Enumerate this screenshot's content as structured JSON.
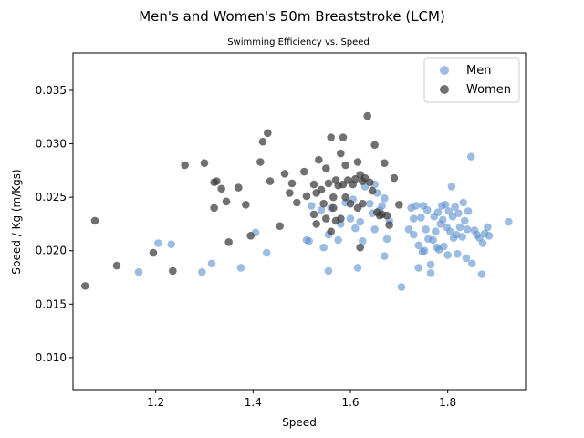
{
  "chart_data": {
    "type": "scatter",
    "title": "Men's and Women's 50m Breaststroke (LCM)",
    "subtitle": "Swimming Efficiency vs. Speed",
    "xlabel": "Speed",
    "ylabel": "Speed / Kg (m/Kgs)",
    "xlim": [
      1.03,
      1.96
    ],
    "ylim": [
      0.007,
      0.0385
    ],
    "xticks": [
      "1.2",
      "1.4",
      "1.6",
      "1.8"
    ],
    "yticks": [
      "0.010",
      "0.015",
      "0.020",
      "0.025",
      "0.030",
      "0.035"
    ],
    "grid": false,
    "legend_position": "top-right",
    "series": [
      {
        "name": "Men",
        "color": "#5b8fce",
        "points": [
          [
            1.165,
            0.018
          ],
          [
            1.205,
            0.0207
          ],
          [
            1.232,
            0.0206
          ],
          [
            1.295,
            0.018
          ],
          [
            1.315,
            0.0188
          ],
          [
            1.375,
            0.0184
          ],
          [
            1.405,
            0.0217
          ],
          [
            1.428,
            0.0198
          ],
          [
            1.51,
            0.021
          ],
          [
            1.515,
            0.0209
          ],
          [
            1.52,
            0.0242
          ],
          [
            1.54,
            0.0238
          ],
          [
            1.545,
            0.0203
          ],
          [
            1.555,
            0.0181
          ],
          [
            1.555,
            0.0215
          ],
          [
            1.56,
            0.024
          ],
          [
            1.575,
            0.021
          ],
          [
            1.58,
            0.0225
          ],
          [
            1.59,
            0.0245
          ],
          [
            1.6,
            0.023
          ],
          [
            1.605,
            0.0248
          ],
          [
            1.61,
            0.0221
          ],
          [
            1.615,
            0.0184
          ],
          [
            1.62,
            0.0227
          ],
          [
            1.625,
            0.0209
          ],
          [
            1.63,
            0.026
          ],
          [
            1.64,
            0.0244
          ],
          [
            1.645,
            0.0235
          ],
          [
            1.65,
            0.022
          ],
          [
            1.65,
            0.0262
          ],
          [
            1.655,
            0.0254
          ],
          [
            1.66,
            0.0238
          ],
          [
            1.665,
            0.0242
          ],
          [
            1.67,
            0.0249
          ],
          [
            1.67,
            0.0195
          ],
          [
            1.675,
            0.0211
          ],
          [
            1.68,
            0.0228
          ],
          [
            1.705,
            0.0166
          ],
          [
            1.72,
            0.022
          ],
          [
            1.725,
            0.024
          ],
          [
            1.73,
            0.023
          ],
          [
            1.73,
            0.0215
          ],
          [
            1.735,
            0.0242
          ],
          [
            1.74,
            0.0205
          ],
          [
            1.74,
            0.0184
          ],
          [
            1.745,
            0.0231
          ],
          [
            1.748,
            0.0199
          ],
          [
            1.75,
            0.0242
          ],
          [
            1.752,
            0.02
          ],
          [
            1.755,
            0.022
          ],
          [
            1.758,
            0.0238
          ],
          [
            1.76,
            0.0211
          ],
          [
            1.765,
            0.0187
          ],
          [
            1.765,
            0.0179
          ],
          [
            1.77,
            0.021
          ],
          [
            1.772,
            0.0232
          ],
          [
            1.775,
            0.0218
          ],
          [
            1.778,
            0.0203
          ],
          [
            1.78,
            0.0236
          ],
          [
            1.782,
            0.0201
          ],
          [
            1.785,
            0.0225
          ],
          [
            1.788,
            0.0242
          ],
          [
            1.79,
            0.0229
          ],
          [
            1.792,
            0.0204
          ],
          [
            1.795,
            0.0243
          ],
          [
            1.798,
            0.0222
          ],
          [
            1.8,
            0.0196
          ],
          [
            1.802,
            0.0237
          ],
          [
            1.805,
            0.0218
          ],
          [
            1.808,
            0.026
          ],
          [
            1.81,
            0.0232
          ],
          [
            1.812,
            0.0212
          ],
          [
            1.815,
            0.0241
          ],
          [
            1.818,
            0.0215
          ],
          [
            1.82,
            0.0197
          ],
          [
            1.822,
            0.0235
          ],
          [
            1.825,
            0.0222
          ],
          [
            1.83,
            0.0213
          ],
          [
            1.832,
            0.0245
          ],
          [
            1.835,
            0.0228
          ],
          [
            1.838,
            0.0193
          ],
          [
            1.84,
            0.022
          ],
          [
            1.842,
            0.0237
          ],
          [
            1.848,
            0.0288
          ],
          [
            1.85,
            0.0188
          ],
          [
            1.855,
            0.0219
          ],
          [
            1.86,
            0.0215
          ],
          [
            1.865,
            0.0212
          ],
          [
            1.87,
            0.0178
          ],
          [
            1.872,
            0.0207
          ],
          [
            1.876,
            0.0216
          ],
          [
            1.882,
            0.0222
          ],
          [
            1.885,
            0.0214
          ],
          [
            1.925,
            0.0227
          ]
        ]
      },
      {
        "name": "Women",
        "color": "#3a3a3a",
        "points": [
          [
            1.055,
            0.0167
          ],
          [
            1.075,
            0.0228
          ],
          [
            1.12,
            0.0186
          ],
          [
            1.195,
            0.0198
          ],
          [
            1.235,
            0.0181
          ],
          [
            1.26,
            0.028
          ],
          [
            1.3,
            0.0282
          ],
          [
            1.32,
            0.024
          ],
          [
            1.32,
            0.0264
          ],
          [
            1.325,
            0.0265
          ],
          [
            1.335,
            0.0258
          ],
          [
            1.345,
            0.0246
          ],
          [
            1.35,
            0.0208
          ],
          [
            1.37,
            0.0259
          ],
          [
            1.385,
            0.0243
          ],
          [
            1.395,
            0.0214
          ],
          [
            1.415,
            0.0283
          ],
          [
            1.42,
            0.0302
          ],
          [
            1.43,
            0.031
          ],
          [
            1.435,
            0.0265
          ],
          [
            1.455,
            0.0223
          ],
          [
            1.465,
            0.0272
          ],
          [
            1.475,
            0.0254
          ],
          [
            1.48,
            0.0263
          ],
          [
            1.49,
            0.0245
          ],
          [
            1.505,
            0.0274
          ],
          [
            1.51,
            0.0251
          ],
          [
            1.525,
            0.0262
          ],
          [
            1.525,
            0.0234
          ],
          [
            1.53,
            0.0254
          ],
          [
            1.53,
            0.0225
          ],
          [
            1.535,
            0.0285
          ],
          [
            1.54,
            0.0257
          ],
          [
            1.545,
            0.0244
          ],
          [
            1.55,
            0.023
          ],
          [
            1.55,
            0.0277
          ],
          [
            1.555,
            0.0263
          ],
          [
            1.56,
            0.0218
          ],
          [
            1.56,
            0.0306
          ],
          [
            1.565,
            0.025
          ],
          [
            1.565,
            0.024
          ],
          [
            1.57,
            0.0266
          ],
          [
            1.57,
            0.0228
          ],
          [
            1.575,
            0.0261
          ],
          [
            1.58,
            0.0291
          ],
          [
            1.58,
            0.023
          ],
          [
            1.585,
            0.0262
          ],
          [
            1.585,
            0.0306
          ],
          [
            1.59,
            0.025
          ],
          [
            1.59,
            0.028
          ],
          [
            1.595,
            0.0266
          ],
          [
            1.6,
            0.0244
          ],
          [
            1.605,
            0.0262
          ],
          [
            1.61,
            0.0267
          ],
          [
            1.615,
            0.0283
          ],
          [
            1.615,
            0.024
          ],
          [
            1.62,
            0.0271
          ],
          [
            1.62,
            0.0203
          ],
          [
            1.625,
            0.0265
          ],
          [
            1.625,
            0.0244
          ],
          [
            1.63,
            0.0268
          ],
          [
            1.635,
            0.0326
          ],
          [
            1.64,
            0.0264
          ],
          [
            1.645,
            0.0256
          ],
          [
            1.65,
            0.0299
          ],
          [
            1.655,
            0.0236
          ],
          [
            1.66,
            0.0233
          ],
          [
            1.665,
            0.0234
          ],
          [
            1.67,
            0.0282
          ],
          [
            1.675,
            0.0233
          ],
          [
            1.68,
            0.0224
          ],
          [
            1.69,
            0.0268
          ],
          [
            1.7,
            0.0243
          ]
        ]
      }
    ]
  }
}
